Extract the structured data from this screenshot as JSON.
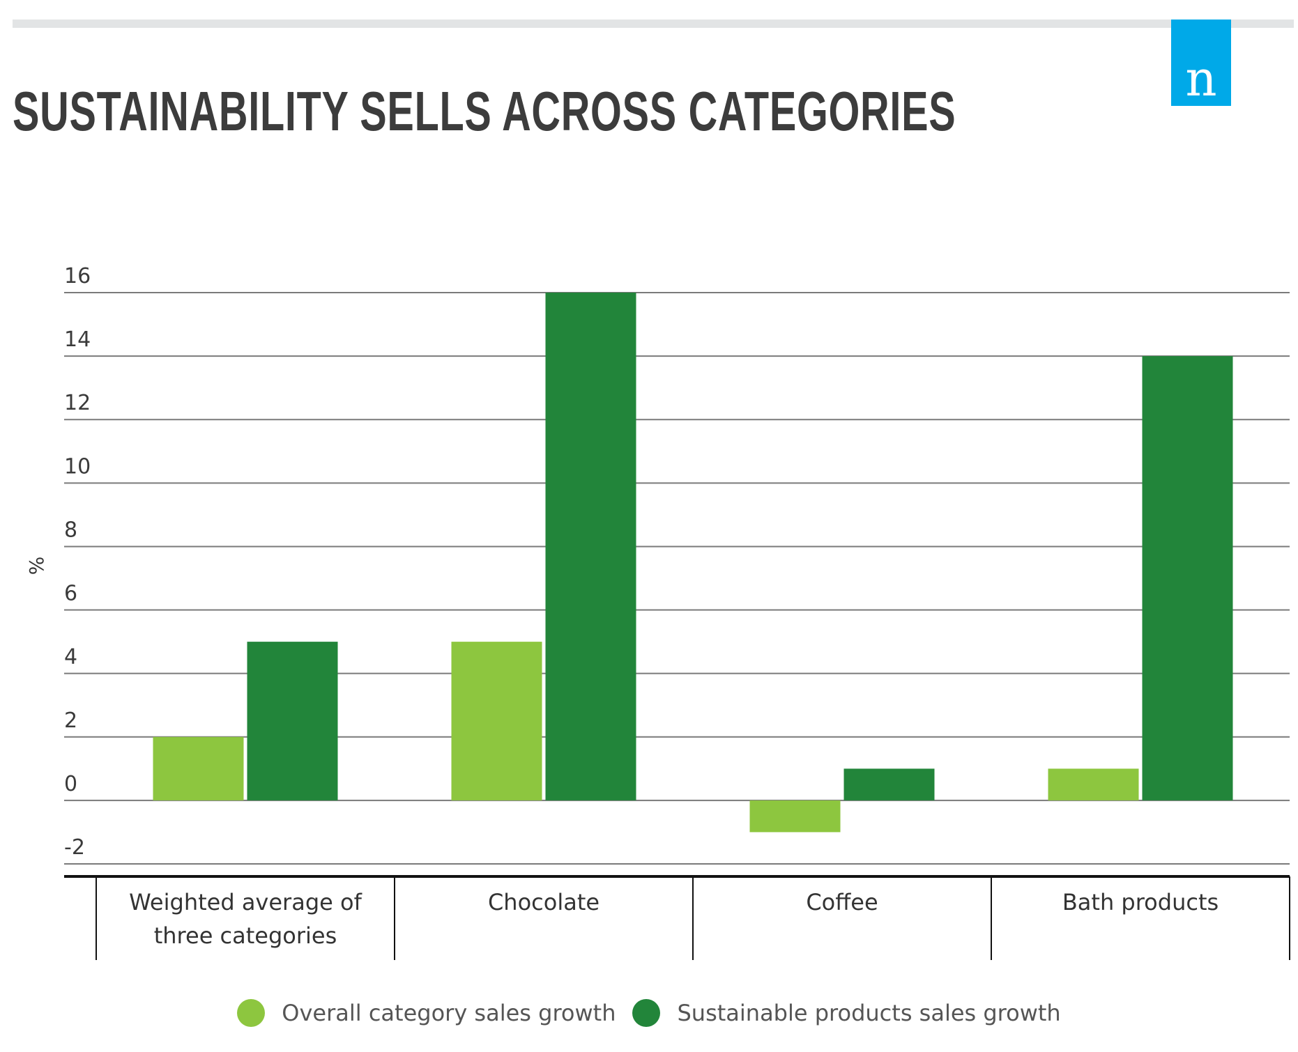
{
  "brand": {
    "logo_letter": "n",
    "logo_color": "#00a9e8"
  },
  "chart_data": {
    "type": "bar",
    "title": "SUSTAINABILITY SELLS ACROSS CATEGORIES",
    "ylabel": "%",
    "xlabel": "",
    "ylim": [
      -2,
      16
    ],
    "yticks": [
      16,
      14,
      12,
      10,
      8,
      6,
      4,
      2,
      0,
      -2
    ],
    "grid": true,
    "legend_position": "bottom",
    "categories": [
      "Weighted average of three categories",
      "Chocolate",
      "Coffee",
      "Bath products"
    ],
    "category_lines": [
      [
        "Weighted average of",
        "three categories"
      ],
      [
        "Chocolate"
      ],
      [
        "Coffee"
      ],
      [
        "Bath products"
      ]
    ],
    "series": [
      {
        "name": "Overall category sales growth",
        "color": "#8dc63f",
        "values": [
          2,
          5,
          -1,
          1
        ]
      },
      {
        "name": "Sustainable products sales growth",
        "color": "#22853a",
        "values": [
          5,
          16,
          1,
          14
        ]
      }
    ]
  }
}
